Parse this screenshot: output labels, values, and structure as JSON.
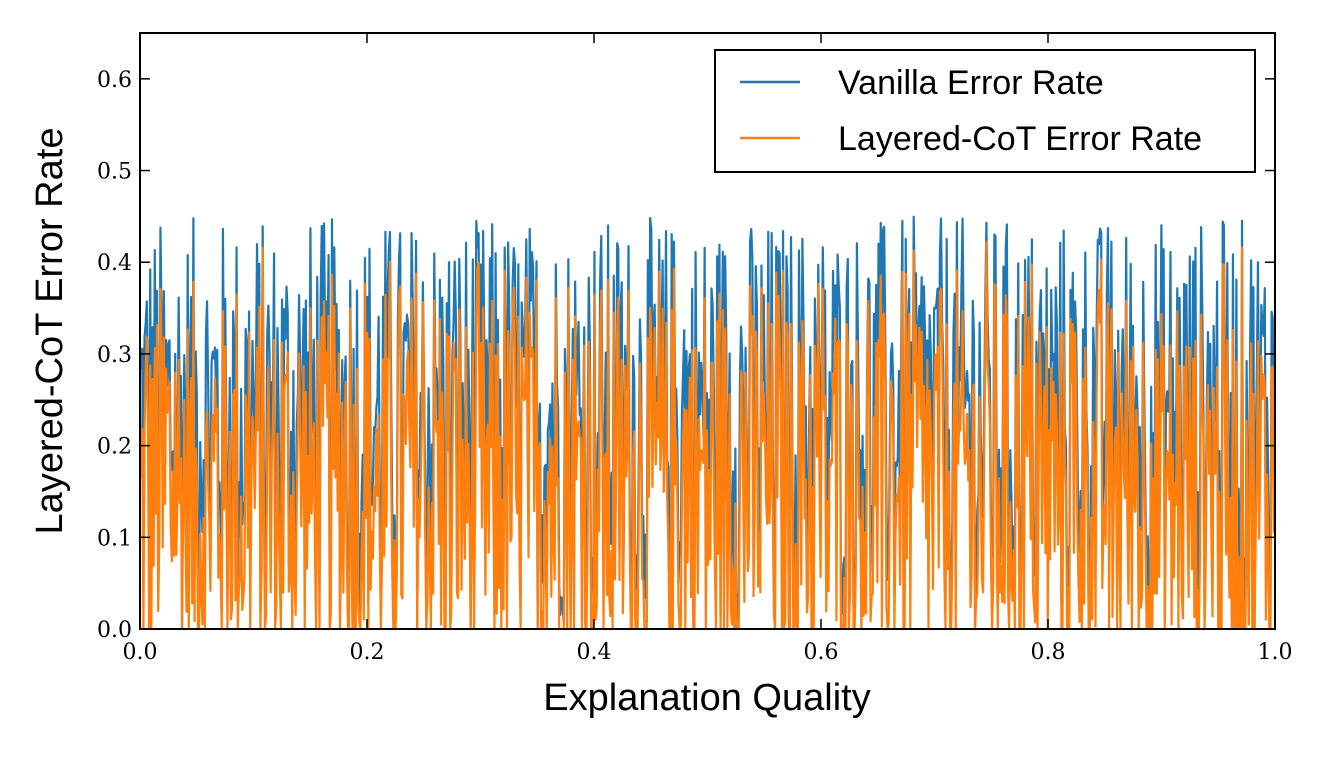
{
  "chart_data": {
    "type": "line",
    "title": "",
    "xlabel": "Explanation Quality",
    "ylabel": "Layered-CoT Error Rate",
    "xlim": [
      0.0,
      1.0
    ],
    "ylim": [
      0.0,
      0.65
    ],
    "xticks": [
      0.0,
      0.2,
      0.4,
      0.6,
      0.8,
      1.0
    ],
    "xtick_labels": [
      "0.0",
      "0.2",
      "0.4",
      "0.6",
      "0.8",
      "1.0"
    ],
    "yticks": [
      0.0,
      0.1,
      0.2,
      0.3,
      0.4,
      0.5,
      0.6
    ],
    "ytick_labels": [
      "0.0",
      "0.1",
      "0.2",
      "0.3",
      "0.4",
      "0.5",
      "0.6"
    ],
    "grid": false,
    "legend_position": "top-right",
    "n_points": 1000,
    "series": [
      {
        "name": "Vanilla Error Rate",
        "color": "#1f77b4",
        "description_range": [
          0.0,
          0.45
        ],
        "distribution": "uniform random noise between about 0.0 and 0.45"
      },
      {
        "name": "Layered-CoT Error Rate",
        "color": "#ff7f0e",
        "offset_from_vanilla": 0.05,
        "distribution": "vanilla values minus roughly 0.05, clipped at 0.0"
      }
    ]
  }
}
